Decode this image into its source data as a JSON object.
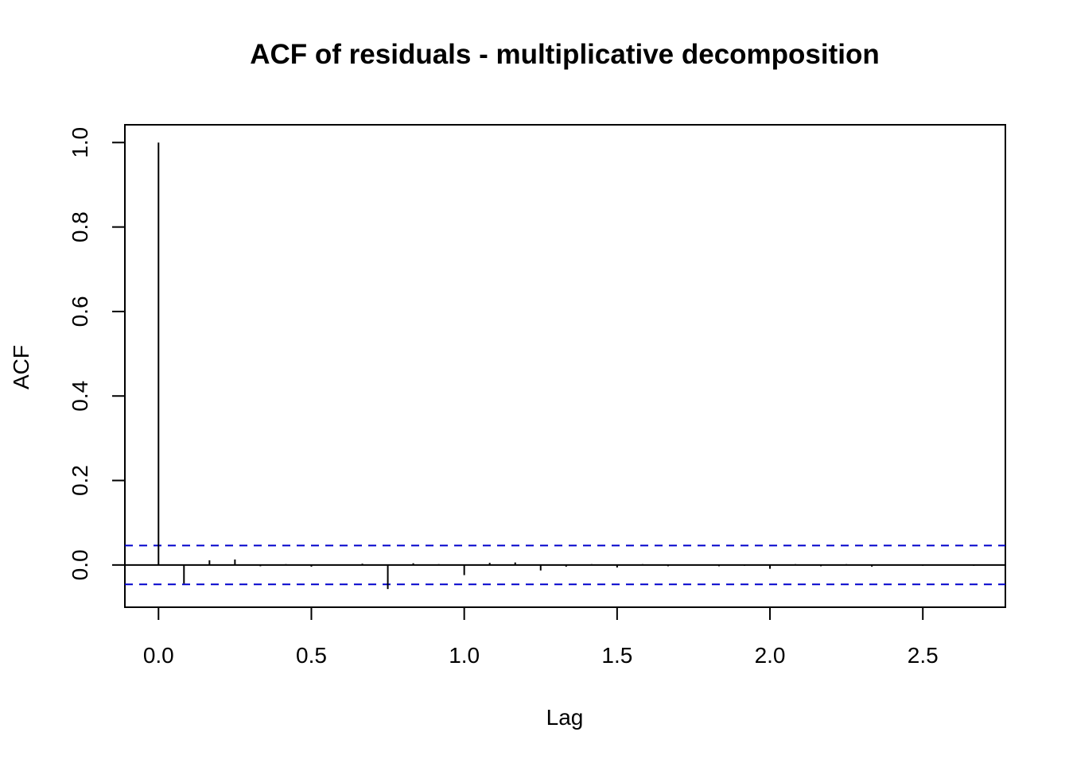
{
  "chart_data": {
    "type": "bar",
    "title": "ACF of residuals - multiplicative decomposition",
    "xlabel": "Lag",
    "ylabel": "ACF",
    "xlim": [
      -0.11,
      2.77
    ],
    "ylim": [
      -0.1,
      1.042
    ],
    "x_ticks": [
      "0.0",
      "0.5",
      "1.0",
      "1.5",
      "2.0",
      "2.5"
    ],
    "y_ticks": [
      "0.0",
      "0.2",
      "0.4",
      "0.6",
      "0.8",
      "1.0"
    ],
    "confidence_bound": 0.046,
    "confidence_color": "#0000cc",
    "lags": [
      0.0,
      0.0833,
      0.1667,
      0.25,
      0.3333,
      0.4167,
      0.5,
      0.5833,
      0.6667,
      0.75,
      0.8333,
      0.9167,
      1.0,
      1.0833,
      1.1667,
      1.25,
      1.3333,
      1.4167,
      1.5,
      1.5833,
      1.6667,
      1.75,
      1.8333,
      1.9167,
      2.0,
      2.0833,
      2.1667,
      2.25,
      2.3333,
      2.4167,
      2.5,
      2.5833,
      2.6667
    ],
    "values": [
      1.0,
      -0.044,
      0.011,
      0.013,
      -0.003,
      0.002,
      -0.004,
      0.001,
      0.003,
      -0.057,
      0.004,
      0.002,
      -0.024,
      0.005,
      0.006,
      -0.013,
      -0.004,
      0.002,
      -0.006,
      0.002,
      -0.003,
      0.001,
      -0.003,
      -0.002,
      -0.009,
      0.002,
      -0.003,
      0.002,
      -0.004,
      0.001,
      -0.002,
      0.001,
      -0.002
    ],
    "grid": false,
    "legend": "none"
  }
}
